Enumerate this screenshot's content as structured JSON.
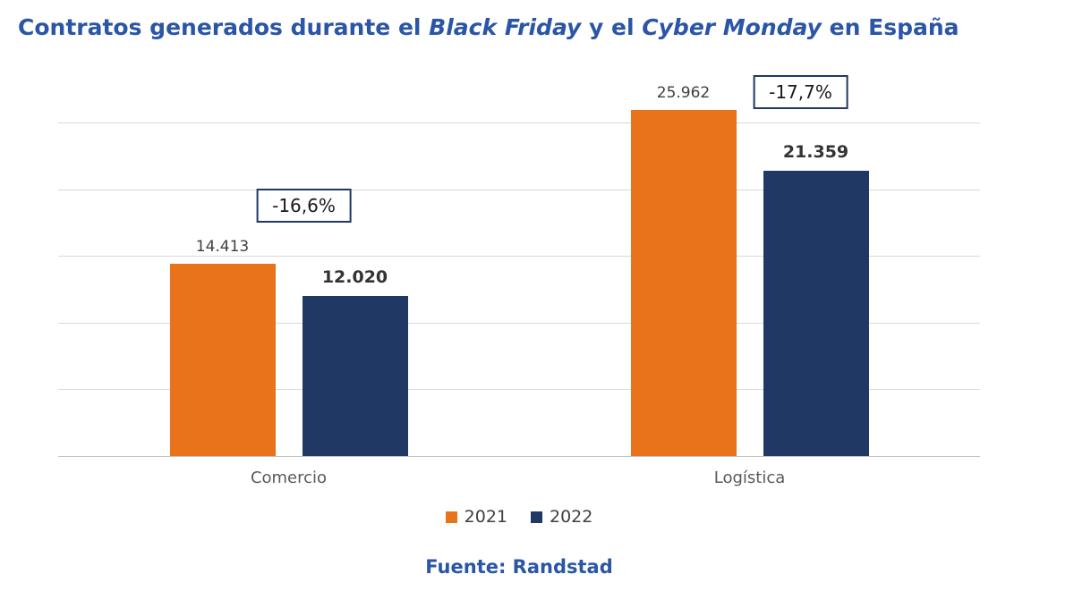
{
  "title": {
    "part1": "Contratos generados durante el ",
    "italic1": "Black Friday",
    "part2": " y el ",
    "italic2": "Cyber Monday",
    "part3": " en España"
  },
  "footer": "Fuente: Randstad",
  "legend": [
    {
      "label": "2021",
      "color": "#E8731A"
    },
    {
      "label": "2022",
      "color": "#1F3864"
    }
  ],
  "colors": {
    "title_blue": "#2B55A5",
    "orange": "#E8731A",
    "navy": "#1F3864",
    "gridline": "#D9D9D9",
    "axis_line": "#BFBFBF",
    "callout_border": "#1F3864"
  },
  "chart_data": {
    "type": "bar",
    "title": "Contratos generados durante el Black Friday y el Cyber Monday en España",
    "categories": [
      "Comercio",
      "Logística"
    ],
    "series": [
      {
        "name": "2021",
        "color": "#E8731A",
        "values": [
          14413,
          25962
        ],
        "labels": [
          "14.413",
          "25.962"
        ]
      },
      {
        "name": "2022",
        "color": "#1F3864",
        "values": [
          12020,
          21359
        ],
        "labels": [
          "12.020",
          "21.359"
        ]
      }
    ],
    "callouts": [
      "-16,6%",
      "-17,7%"
    ],
    "ylim": [
      0,
      25000
    ],
    "gridline_interval": 5000,
    "grid": true,
    "legend_position": "bottom",
    "source": "Fuente: Randstad"
  }
}
